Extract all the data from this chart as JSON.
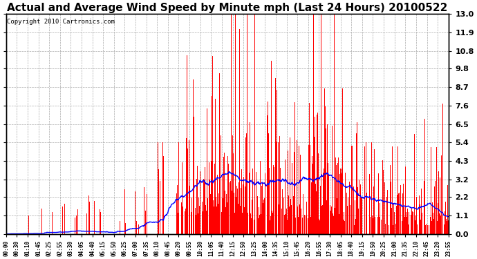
{
  "title": "Actual and Average Wind Speed by Minute mph (Last 24 Hours) 20100522",
  "copyright": "Copyright 2010 Cartronics.com",
  "yticks": [
    0.0,
    1.1,
    2.2,
    3.2,
    4.3,
    5.4,
    6.5,
    7.6,
    8.7,
    9.8,
    10.8,
    11.9,
    13.0
  ],
  "ylim": [
    0.0,
    13.0
  ],
  "xtick_labels": [
    "00:00",
    "00:30",
    "01:10",
    "01:45",
    "02:25",
    "02:55",
    "03:30",
    "04:05",
    "04:40",
    "05:15",
    "05:50",
    "06:25",
    "07:00",
    "07:35",
    "08:10",
    "08:45",
    "09:20",
    "09:55",
    "10:30",
    "11:05",
    "11:40",
    "12:15",
    "12:50",
    "13:25",
    "14:00",
    "14:35",
    "15:10",
    "15:45",
    "16:20",
    "16:55",
    "17:30",
    "18:05",
    "18:40",
    "19:15",
    "19:50",
    "20:25",
    "21:00",
    "21:35",
    "22:10",
    "22:45",
    "23:20",
    "23:55"
  ],
  "bar_color": "#ff0000",
  "line_color": "#0000ff",
  "background_color": "#ffffff",
  "grid_color": "#aaaaaa",
  "title_fontsize": 11,
  "copyright_fontsize": 6.5
}
